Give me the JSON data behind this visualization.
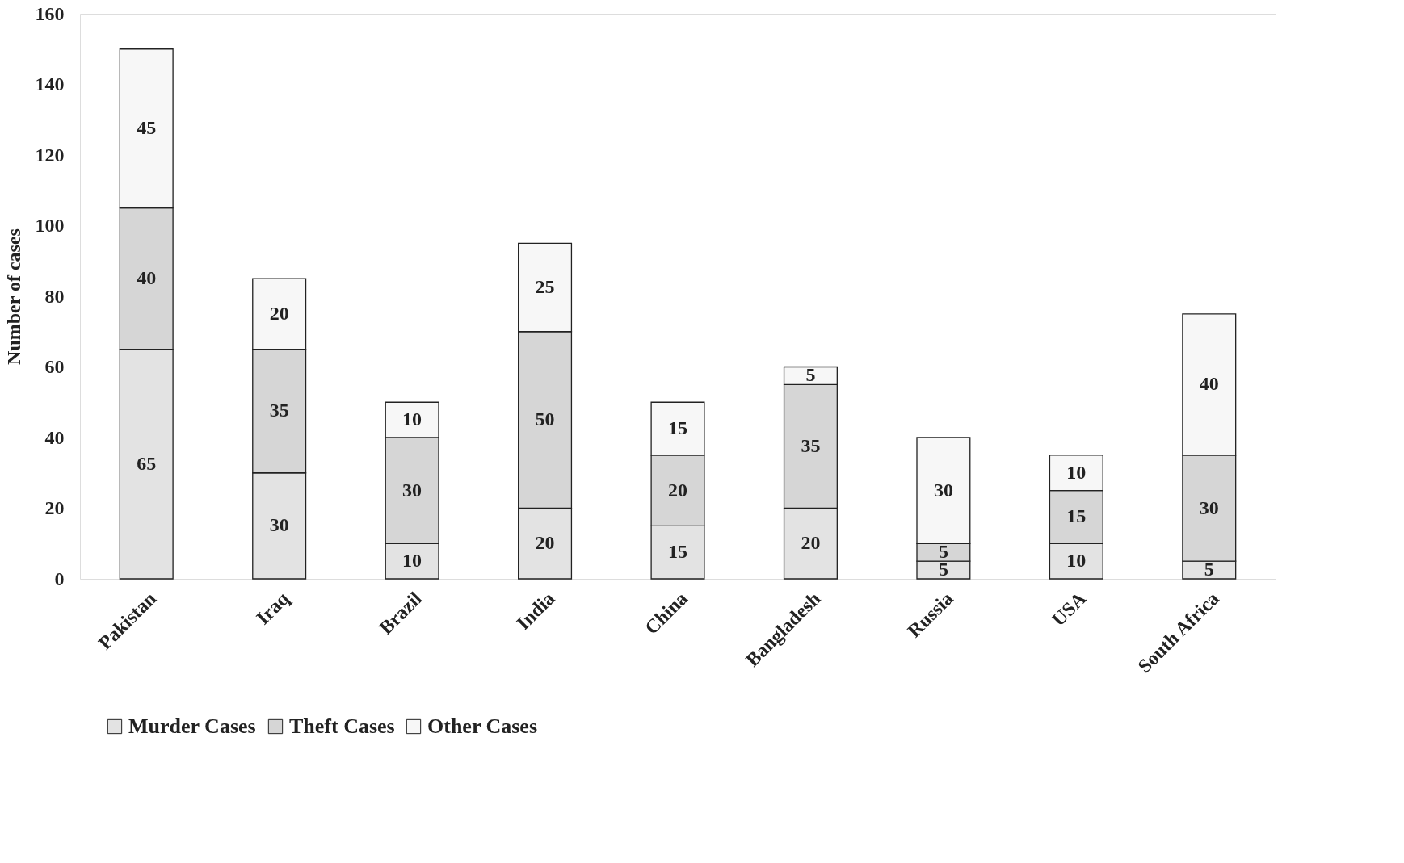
{
  "chart_data": {
    "type": "bar",
    "stacked": true,
    "ylabel": "Number of cases",
    "categories": [
      "Pakistan",
      "Iraq",
      "Brazil",
      "India",
      "China",
      "Bangladesh",
      "Russia",
      "USA",
      "South Africa"
    ],
    "series": [
      {
        "name": "Murder Cases",
        "color": "#e3e3e3",
        "values": [
          65,
          30,
          10,
          20,
          15,
          20,
          5,
          10,
          5
        ]
      },
      {
        "name": "Theft Cases",
        "color": "#d6d6d6",
        "values": [
          40,
          35,
          30,
          50,
          20,
          35,
          5,
          15,
          30
        ]
      },
      {
        "name": "Other Cases",
        "color": "#f7f7f7",
        "values": [
          45,
          20,
          10,
          25,
          15,
          5,
          30,
          10,
          40
        ]
      }
    ],
    "ylim": [
      0,
      160
    ],
    "yticks": [
      0,
      20,
      40,
      60,
      80,
      100,
      120,
      140,
      160
    ],
    "data_labels": true,
    "grid": false,
    "legend": "bottom"
  }
}
